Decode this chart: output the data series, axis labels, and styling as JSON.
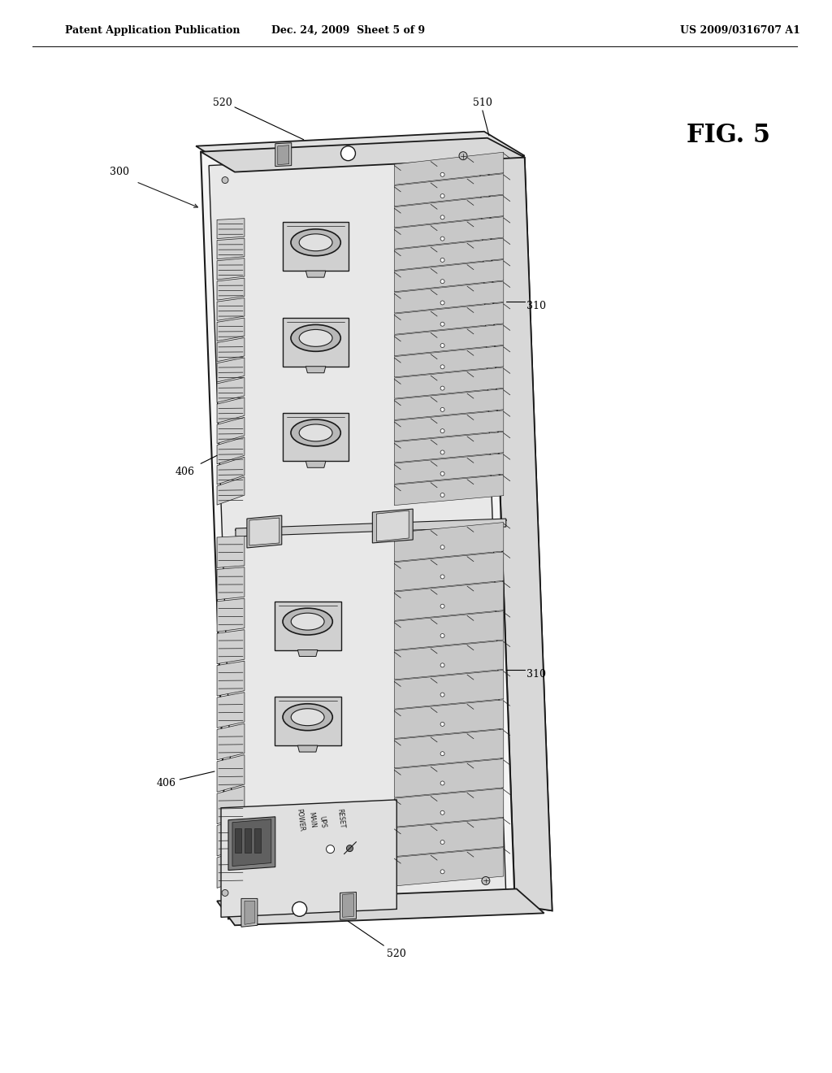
{
  "bg_color": "#ffffff",
  "header_left": "Patent Application Publication",
  "header_mid": "Dec. 24, 2009  Sheet 5 of 9",
  "header_right": "US 2009/0316707 A1",
  "fig_label": "FIG. 5",
  "line_color": "#1a1a1a",
  "fill_light": "#f5f5f5",
  "fill_mid": "#e0e0e0",
  "fill_dark": "#c0c0c0",
  "fill_darker": "#a0a0a0"
}
